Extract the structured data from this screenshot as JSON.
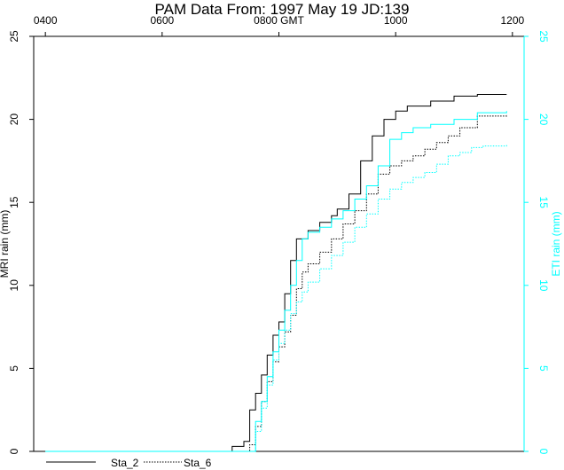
{
  "chart_data": {
    "type": "line",
    "title": "PAM Data From:  1997 May 19 JD:139",
    "xlabel": "0800 GMT",
    "ylabel_left": "MRI rain (mm)",
    "ylabel_right": "ETI rain (mm)",
    "x_unit": "hours GMT",
    "xlim": [
      3.8,
      12.2
    ],
    "ylim": [
      0,
      25
    ],
    "x_ticks": [
      4,
      6,
      8,
      10,
      12
    ],
    "x_tick_labels": [
      "0400",
      "0600",
      "0800 GMT",
      "1000",
      "1200"
    ],
    "y_ticks": [
      0,
      5,
      10,
      15,
      20,
      25
    ],
    "y_tick_labels": [
      "0",
      "5",
      "10",
      "15",
      "20",
      "25"
    ],
    "right_axis_color": "#00ffff",
    "grid": false,
    "legend": {
      "placement": "bottom-left",
      "entries": [
        "Sta_2",
        "Sta_6"
      ]
    },
    "series": [
      {
        "name": "Sta_2",
        "axis": "left",
        "color": "#000000",
        "dash": "solid",
        "x": [
          4.0,
          7.0,
          7.2,
          7.4,
          7.5,
          7.6,
          7.7,
          7.8,
          7.9,
          8.0,
          8.1,
          8.2,
          8.3,
          8.5,
          8.7,
          8.9,
          9.0,
          9.2,
          9.4,
          9.6,
          9.8,
          10.0,
          10.2,
          10.6,
          11.0,
          11.4,
          11.9
        ],
        "y": [
          0,
          0,
          0.3,
          0.6,
          2.5,
          3.5,
          4.6,
          5.8,
          7.0,
          7.8,
          9.5,
          11.5,
          12.8,
          13.3,
          13.8,
          14.2,
          14.6,
          15.5,
          17.5,
          19.0,
          20.0,
          20.5,
          20.8,
          21.1,
          21.4,
          21.5,
          21.5
        ]
      },
      {
        "name": "Sta_6",
        "axis": "left",
        "color": "#000000",
        "dash": "dotted",
        "x": [
          4.0,
          7.3,
          7.5,
          7.6,
          7.7,
          7.8,
          7.9,
          8.0,
          8.1,
          8.2,
          8.3,
          8.4,
          8.5,
          8.7,
          8.9,
          9.1,
          9.3,
          9.5,
          9.7,
          9.9,
          10.1,
          10.3,
          10.5,
          10.7,
          10.9,
          11.1,
          11.4,
          11.9
        ],
        "y": [
          0,
          0,
          0.4,
          1.5,
          3.0,
          4.2,
          5.4,
          6.3,
          7.2,
          8.2,
          9.8,
          10.8,
          11.3,
          12.0,
          12.8,
          13.7,
          14.5,
          15.5,
          16.7,
          17.2,
          17.5,
          17.8,
          18.2,
          18.6,
          19.0,
          19.5,
          20.2,
          20.3
        ]
      },
      {
        "name": "Sta_2",
        "axis": "right",
        "color": "#00ffff",
        "dash": "solid",
        "x": [
          4.0,
          7.4,
          7.6,
          7.7,
          7.8,
          7.9,
          8.0,
          8.1,
          8.2,
          8.3,
          8.4,
          8.5,
          8.7,
          8.9,
          9.1,
          9.3,
          9.5,
          9.7,
          9.9,
          10.1,
          10.3,
          10.6,
          11.0,
          11.4,
          11.9
        ],
        "y": [
          0,
          0,
          1.8,
          3.0,
          4.5,
          6.0,
          7.3,
          8.5,
          10.0,
          11.5,
          12.8,
          13.2,
          13.5,
          14.0,
          14.5,
          15.2,
          16.0,
          17.2,
          18.8,
          19.2,
          19.5,
          19.7,
          20.0,
          20.4,
          20.5
        ]
      },
      {
        "name": "Sta_6",
        "axis": "right",
        "color": "#00ffff",
        "dash": "dotted",
        "x": [
          4.0,
          7.4,
          7.6,
          7.7,
          7.8,
          7.9,
          8.0,
          8.1,
          8.2,
          8.3,
          8.4,
          8.5,
          8.7,
          8.9,
          9.1,
          9.3,
          9.5,
          9.7,
          9.9,
          10.1,
          10.3,
          10.5,
          10.7,
          10.9,
          11.1,
          11.3,
          11.5,
          11.9
        ],
        "y": [
          0,
          0,
          1.2,
          2.6,
          4.0,
          5.5,
          6.5,
          7.3,
          8.3,
          9.0,
          9.6,
          10.2,
          11.0,
          11.8,
          12.6,
          13.5,
          14.3,
          15.2,
          15.8,
          16.2,
          16.5,
          16.8,
          17.3,
          17.8,
          18.0,
          18.3,
          18.4,
          18.5
        ]
      }
    ]
  }
}
